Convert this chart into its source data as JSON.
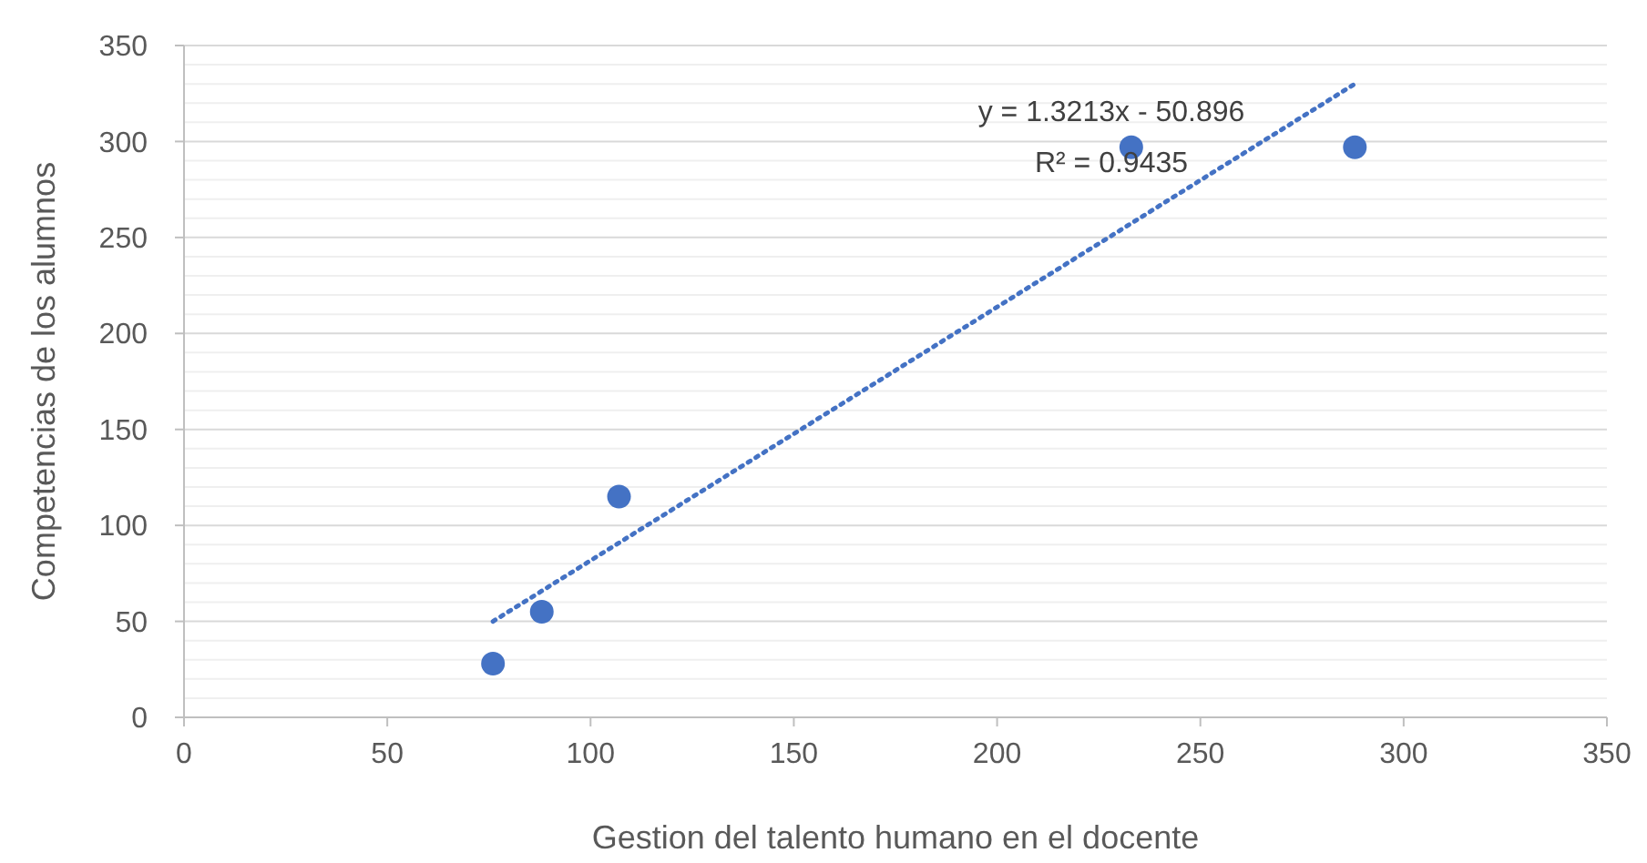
{
  "chart_data": {
    "type": "scatter",
    "xlabel": "Gestion del talento humano en el docente",
    "ylabel": "Competencias de los alumnos",
    "xlim": [
      0,
      350
    ],
    "xticks": [
      0,
      50,
      100,
      150,
      200,
      250,
      300,
      350
    ],
    "ylim": [
      0,
      350
    ],
    "yticks": [
      0,
      {
        "value": 10,
        "label": null
      },
      {
        "value": 20,
        "label": null
      },
      {
        "value": 30,
        "label": null
      },
      {
        "value": 40,
        "label": null
      },
      50,
      {
        "value": 60,
        "label": null
      },
      {
        "value": 70,
        "label": null
      },
      {
        "value": 80,
        "label": null
      },
      {
        "value": 90,
        "label": null
      },
      100,
      {
        "value": 110,
        "label": null
      },
      {
        "value": 120,
        "label": null
      },
      {
        "value": 130,
        "label": null
      },
      {
        "value": 140,
        "label": null
      },
      150,
      {
        "value": 160,
        "label": null
      },
      {
        "value": 170,
        "label": null
      },
      {
        "value": 180,
        "label": null
      },
      {
        "value": 190,
        "label": null
      },
      200,
      {
        "value": 210,
        "label": null
      },
      {
        "value": 220,
        "label": null
      },
      {
        "value": 230,
        "label": null
      },
      {
        "value": 240,
        "label": null
      },
      250,
      {
        "value": 260,
        "label": null
      },
      {
        "value": 270,
        "label": null
      },
      {
        "value": 280,
        "label": null
      },
      {
        "value": 290,
        "label": null
      },
      300,
      {
        "value": 310,
        "label": null
      },
      {
        "value": 320,
        "label": null
      },
      {
        "value": 330,
        "label": null
      },
      {
        "value": 340,
        "label": null
      },
      350
    ],
    "grid": "y",
    "marker": "circle",
    "series": [
      {
        "color": "#4472c4",
        "x": [
          76,
          88,
          107,
          233,
          288
        ],
        "values": [
          28,
          55,
          115,
          297,
          297
        ]
      },
      {
        "type": "line",
        "color": "#4472c4",
        "line_style": "dotted",
        "marker": "none",
        "x": [
          76,
          288
        ],
        "values": [
          50,
          330
        ]
      }
    ],
    "annotations": [
      "y = 1.3213x - 50.896",
      "R² = 0.9435"
    ]
  }
}
